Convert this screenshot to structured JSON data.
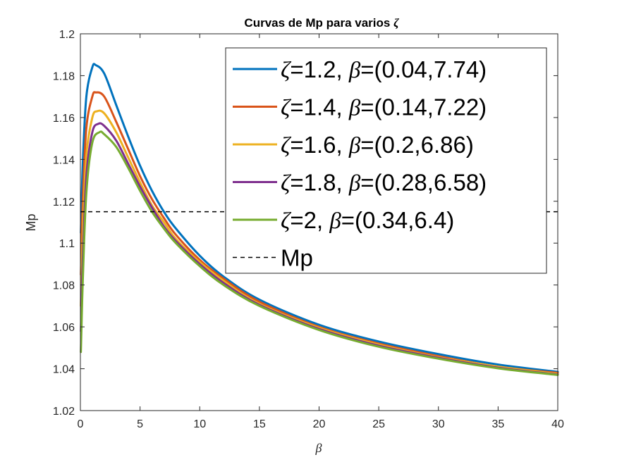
{
  "chart_data": {
    "type": "line",
    "title": "Curvas de Mp para varios",
    "title_symbol": "ζ",
    "xlabel": "β",
    "ylabel": "Mp",
    "xlim": [
      0,
      40
    ],
    "ylim": [
      1.02,
      1.2
    ],
    "xticks": [
      0,
      5,
      10,
      15,
      20,
      25,
      30,
      35,
      40
    ],
    "yticks": [
      1.02,
      1.04,
      1.06,
      1.08,
      1.1,
      1.12,
      1.14,
      1.16,
      1.18,
      1.2
    ],
    "grid": false,
    "legend_position": "top-right",
    "series": [
      {
        "name": "ζ=1.2, β=(0.04,7.74)",
        "zeta": "1.2",
        "beta_range": "(0.04,7.74)",
        "color": "#0072BD",
        "x": [
          0.04,
          0.2,
          0.5,
          1,
          1.3,
          2,
          3,
          4,
          5,
          6,
          7,
          8,
          10,
          12,
          15,
          20,
          25,
          30,
          35,
          40
        ],
        "y": [
          1.105,
          1.138,
          1.17,
          1.184,
          1.185,
          1.181,
          1.166,
          1.151,
          1.137,
          1.125,
          1.115,
          1.107,
          1.094,
          1.084,
          1.073,
          1.061,
          1.053,
          1.047,
          1.042,
          1.0385
        ]
      },
      {
        "name": "ζ=1.4, β=(0.14,7.22)",
        "zeta": "1.4",
        "beta_range": "(0.14,7.22)",
        "color": "#D95319",
        "x": [
          0.04,
          0.2,
          0.5,
          1,
          1.3,
          2,
          3,
          4,
          5,
          6,
          7,
          8,
          10,
          12,
          15,
          20,
          25,
          30,
          35,
          40
        ],
        "y": [
          1.085,
          1.12,
          1.155,
          1.17,
          1.172,
          1.17,
          1.158,
          1.145,
          1.132,
          1.121,
          1.112,
          1.104,
          1.092,
          1.083,
          1.072,
          1.06,
          1.052,
          1.046,
          1.041,
          1.038
        ]
      },
      {
        "name": "ζ=1.6, β=(0.2,6.86)",
        "zeta": "1.6",
        "beta_range": "(0.2,6.86)",
        "color": "#EDB120",
        "x": [
          0.04,
          0.2,
          0.5,
          1,
          1.4,
          2,
          3,
          4,
          5,
          6,
          7,
          8,
          10,
          12,
          15,
          20,
          25,
          30,
          35,
          40
        ],
        "y": [
          1.07,
          1.105,
          1.142,
          1.16,
          1.163,
          1.162,
          1.153,
          1.141,
          1.129,
          1.118,
          1.11,
          1.102,
          1.091,
          1.082,
          1.071,
          1.0595,
          1.0515,
          1.0455,
          1.041,
          1.0375
        ]
      },
      {
        "name": "ζ=1.8, β=(0.28,6.58)",
        "zeta": "1.8",
        "beta_range": "(0.28,6.58)",
        "color": "#7E2F8E",
        "x": [
          0.04,
          0.2,
          0.5,
          1,
          1.5,
          2,
          3,
          4,
          5,
          6,
          7,
          8,
          10,
          12,
          15,
          20,
          25,
          30,
          35,
          40
        ],
        "y": [
          1.058,
          1.092,
          1.132,
          1.153,
          1.157,
          1.156,
          1.149,
          1.138,
          1.127,
          1.117,
          1.108,
          1.101,
          1.09,
          1.081,
          1.0705,
          1.059,
          1.051,
          1.0452,
          1.0405,
          1.0372
        ]
      },
      {
        "name": "ζ=2, β=(0.34,6.4)",
        "zeta": "2",
        "beta_range": "(0.34,6.4)",
        "color": "#77AC30",
        "x": [
          0.04,
          0.2,
          0.5,
          1,
          1.6,
          2,
          3,
          4,
          5,
          6,
          7,
          8,
          10,
          12,
          15,
          20,
          25,
          30,
          35,
          40
        ],
        "y": [
          1.048,
          1.082,
          1.124,
          1.148,
          1.153,
          1.152,
          1.146,
          1.136,
          1.125,
          1.115,
          1.107,
          1.1,
          1.089,
          1.08,
          1.07,
          1.0585,
          1.0505,
          1.0448,
          1.0402,
          1.037
        ]
      }
    ],
    "reference_line": {
      "name": "Mp",
      "y": 1.115,
      "style": "dashed",
      "color": "#000000"
    }
  }
}
